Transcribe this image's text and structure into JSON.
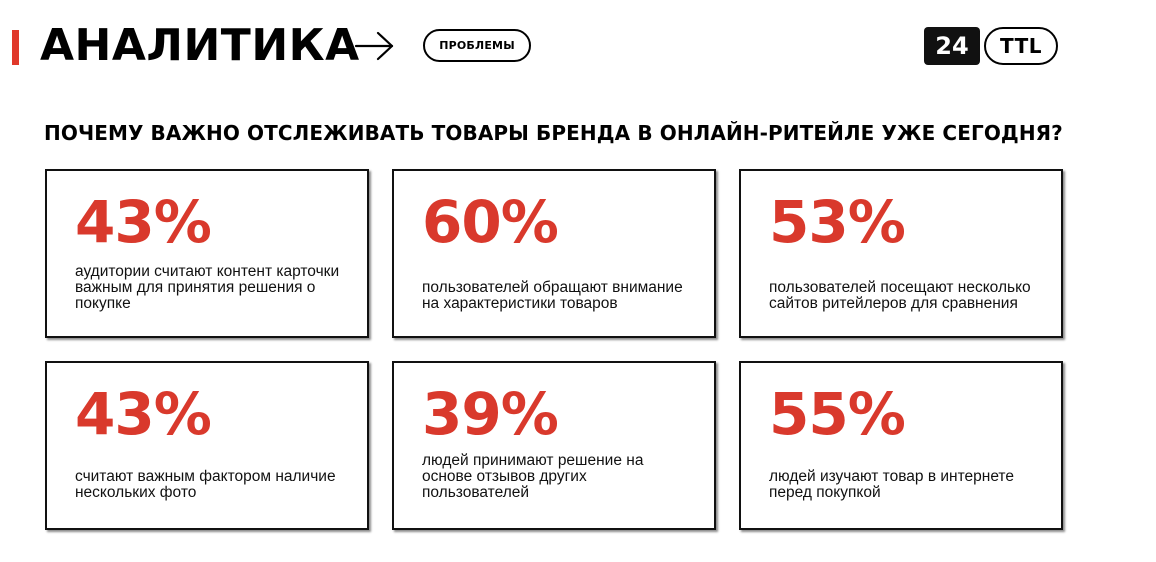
{
  "header": {
    "section_title": "АНАЛИТИКА",
    "tag": "ПРОБЛЕМЫ",
    "accent_color": "#e0382b",
    "arrow_icon": "arrow-right-icon",
    "logo": {
      "number": "24",
      "word": "TTL"
    }
  },
  "headline": "ПОЧЕМУ ВАЖНО ОТСЛЕЖИВАТЬ ТОВАРЫ БРЕНДА В ОНЛАЙН-РИТЕЙЛЕ УЖЕ СЕГОДНЯ?",
  "stat_color": "#d9392c",
  "stats": [
    {
      "value": "43%",
      "description": "аудитории считают контент карточки важным для принятия решения о покупке"
    },
    {
      "value": "60%",
      "description": "пользователей обращают внимание на характеристики товаров"
    },
    {
      "value": "53%",
      "description": "пользователей посещают несколько сайтов ритейлеров для сравнения"
    },
    {
      "value": "43%",
      "description": "считают важным фактором наличие нескольких фото"
    },
    {
      "value": "39%",
      "description": "людей принимают решение на основе отзывов других пользователей"
    },
    {
      "value": "55%",
      "description": "людей изучают товар в интернете перед покупкой"
    }
  ]
}
